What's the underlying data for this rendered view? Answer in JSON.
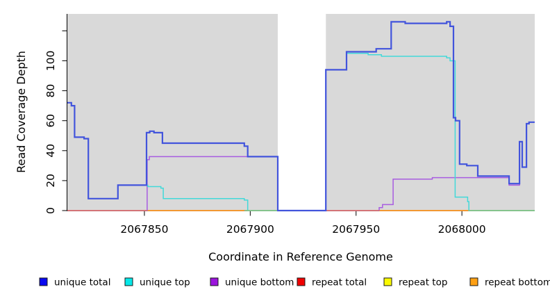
{
  "figure": {
    "background_color": "#ffffff",
    "plot_background_color": "#d9d9d9",
    "y_axis": {
      "label": "Read Coverage Depth",
      "ticks": [
        {
          "value": 0,
          "label": "0"
        },
        {
          "value": 20,
          "label": "20"
        },
        {
          "value": 40,
          "label": "40"
        },
        {
          "value": 60,
          "label": "60"
        },
        {
          "value": 80,
          "label": "80"
        },
        {
          "value": 100,
          "label": "100"
        },
        {
          "value": 120,
          "label": ""
        }
      ]
    },
    "x_axis": {
      "label": "Coordinate in Reference Genome",
      "ticks": [
        {
          "value": 2067850,
          "label": "2067850"
        },
        {
          "value": 2067900,
          "label": "2067900"
        },
        {
          "value": 2067950,
          "label": "2067950"
        },
        {
          "value": 2068000,
          "label": "2068000"
        }
      ]
    }
  },
  "legend": {
    "items": [
      {
        "label": "unique total",
        "color": "#0808f0"
      },
      {
        "label": "unique top",
        "color": "#06e8e8"
      },
      {
        "label": "unique bottom",
        "color": "#9b14dc"
      },
      {
        "label": "repeat total",
        "color": "#f00000"
      },
      {
        "label": "repeat top",
        "color": "#fafa00"
      },
      {
        "label": "repeat bottom",
        "color": "#ffa014"
      }
    ]
  },
  "chart_data": {
    "type": "line",
    "subtype": "step-coverage",
    "title": "",
    "xlabel": "Coordinate in Reference Genome",
    "ylabel": "Read Coverage Depth",
    "x_range": [
      2067813.6,
      2068034.4
    ],
    "y_range": [
      0,
      131.3
    ],
    "grid": false,
    "legend_position": "bottom",
    "coverage_regions": [
      [
        2067813.6,
        2067913.0
      ],
      [
        2067935.7,
        2068034.4
      ]
    ],
    "uncovered_gap": [
      2067913.0,
      2067935.7
    ],
    "series": [
      {
        "name": "repeat top",
        "in_legend": true,
        "line_color": "#e8e84a",
        "lw": 1.5,
        "segments": [
          [
            [
              2067813.6,
              0
            ],
            [
              2067913.0,
              0
            ]
          ],
          [
            [
              2067935.7,
              0
            ],
            [
              2068034.4,
              0
            ]
          ]
        ]
      },
      {
        "name": "repeat total",
        "in_legend": true,
        "line_color": "#e06080",
        "lw": 1.5,
        "segments": [
          [
            [
              2067813.6,
              0
            ],
            [
              2067913.0,
              0
            ]
          ],
          [
            [
              2067935.7,
              0
            ],
            [
              2068034.4,
              0
            ]
          ]
        ]
      },
      {
        "name": "repeat bottom",
        "in_legend": true,
        "line_color": "#ff9d1e",
        "lw": 1.6,
        "segments": [
          [
            [
              2067851.5,
              0
            ],
            [
              2067897.2,
              0
            ]
          ],
          [
            [
              2067960.9,
              0
            ],
            [
              2068003.3,
              0
            ]
          ]
        ]
      },
      {
        "name": "unique bottom",
        "in_legend": true,
        "line_color": "#a85ce0",
        "lw": 1.5,
        "segments": [
          [
            [
              2067851.3,
              0
            ],
            [
              2067851.3,
              34
            ],
            [
              2067852.3,
              36
            ],
            [
              2067913.0,
              0
            ],
            [
              2067935.7,
              0
            ]
          ],
          [
            [
              2067960.9,
              0
            ],
            [
              2067960.9,
              2
            ],
            [
              2067962.5,
              4
            ],
            [
              2067967.5,
              21
            ],
            [
              2067986.0,
              22
            ],
            [
              2068022.3,
              17
            ],
            [
              2068027.2,
              46
            ],
            [
              2068028.5,
              29
            ],
            [
              2068030.5,
              58
            ],
            [
              2068031.7,
              59
            ],
            [
              2068034.4,
              59
            ]
          ]
        ]
      },
      {
        "name": "unique top",
        "in_legend": true,
        "line_color": "#42d9d9",
        "lw": 1.5,
        "segments": [
          [
            [
              2067813.6,
              72
            ],
            [
              2067815.5,
              70
            ],
            [
              2067817.0,
              49
            ],
            [
              2067821.5,
              48
            ],
            [
              2067823.5,
              8
            ],
            [
              2067837.5,
              17
            ],
            [
              2067851.6,
              16
            ],
            [
              2067857.8,
              15
            ],
            [
              2067858.9,
              8
            ],
            [
              2067897.2,
              7
            ],
            [
              2067898.8,
              0
            ],
            [
              2067913.0,
              0
            ]
          ],
          [
            [
              2067935.7,
              0
            ],
            [
              2067935.7,
              94
            ],
            [
              2067945.5,
              105
            ],
            [
              2067955.7,
              104
            ],
            [
              2067962.0,
              103
            ],
            [
              2067992.8,
              102
            ],
            [
              2067994.4,
              100
            ],
            [
              2067996.8,
              9
            ],
            [
              2068002.7,
              6
            ],
            [
              2068003.3,
              0
            ],
            [
              2068034.4,
              0
            ]
          ]
        ]
      },
      {
        "name": "uncovered baseline",
        "in_legend": false,
        "line_color": "#85c985",
        "lw": 1.5,
        "segments": [
          [
            [
              2067897.2,
              0
            ],
            [
              2067913.0,
              0
            ]
          ],
          [
            [
              2068003.3,
              0
            ],
            [
              2068034.4,
              0
            ]
          ]
        ]
      },
      {
        "name": "unique total",
        "in_legend": true,
        "line_color": "#4254dc",
        "lw": 2.2,
        "segments": [
          [
            [
              2067813.6,
              72
            ],
            [
              2067815.5,
              70
            ],
            [
              2067817.0,
              49
            ],
            [
              2067821.5,
              48
            ],
            [
              2067823.5,
              8
            ],
            [
              2067837.5,
              17
            ],
            [
              2067851.0,
              52
            ],
            [
              2067852.5,
              53
            ],
            [
              2067854.5,
              52
            ],
            [
              2067858.5,
              45
            ],
            [
              2067897.2,
              43
            ],
            [
              2067898.8,
              36
            ],
            [
              2067913.0,
              0
            ],
            [
              2067935.7,
              94
            ],
            [
              2067945.5,
              106
            ],
            [
              2067959.5,
              108
            ],
            [
              2067966.6,
              126
            ],
            [
              2067973.2,
              125
            ],
            [
              2067992.8,
              126
            ],
            [
              2067994.4,
              123
            ],
            [
              2067996.0,
              62
            ],
            [
              2067997.0,
              60
            ],
            [
              2067998.9,
              31
            ],
            [
              2068002.3,
              30
            ],
            [
              2068007.5,
              23
            ],
            [
              2068022.3,
              18
            ],
            [
              2068027.2,
              46
            ],
            [
              2068028.5,
              29
            ],
            [
              2068030.5,
              58
            ],
            [
              2068031.7,
              59
            ],
            [
              2068034.4,
              59
            ]
          ]
        ]
      }
    ]
  }
}
